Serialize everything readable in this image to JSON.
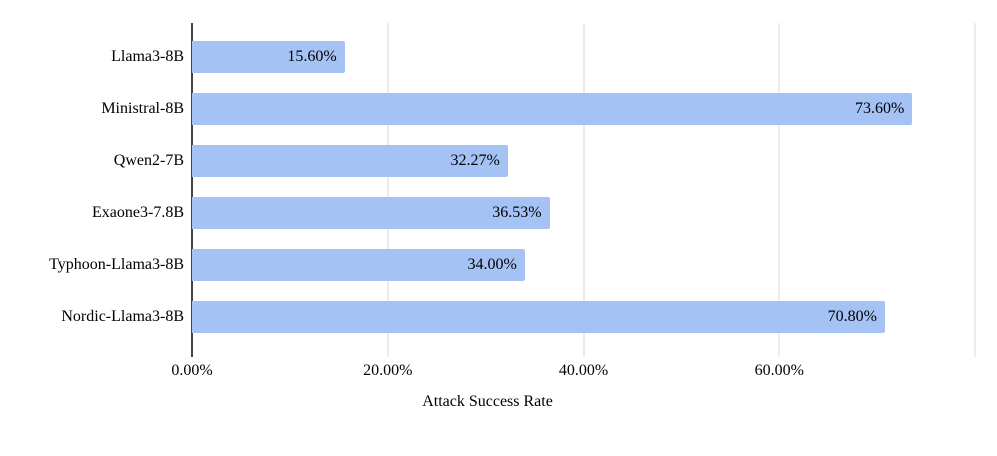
{
  "chart_data": {
    "type": "bar",
    "orientation": "horizontal",
    "title": "",
    "xlabel": "Attack Success Rate",
    "ylabel": "",
    "categories": [
      "Llama3-8B",
      "Ministral-8B",
      "Qwen2-7B",
      "Exaone3-7.8B",
      "Typhoon-Llama3-8B",
      "Nordic-Llama3-8B"
    ],
    "values": [
      15.6,
      73.6,
      32.27,
      36.53,
      34.0,
      70.8
    ],
    "value_labels": [
      "15.60%",
      "73.60%",
      "32.27%",
      "36.53%",
      "34.00%",
      "70.80%"
    ],
    "xlim": [
      0,
      80
    ],
    "x_tick_values": [
      0,
      20,
      40,
      60
    ],
    "x_tick_labels": [
      "0.00%",
      "20.00%",
      "40.00%",
      "60.00%"
    ],
    "gridline_values": [
      20,
      40,
      60,
      80
    ],
    "grid": true,
    "legend": "none",
    "colors": {
      "bar": "#a4c2f4",
      "gridline": "#d9d9d9",
      "axis_line": "#444444",
      "text": "#000000"
    }
  }
}
